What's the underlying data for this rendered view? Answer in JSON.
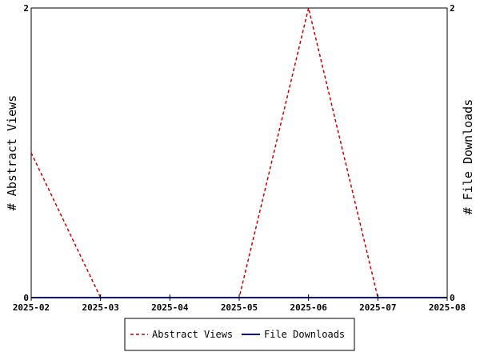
{
  "chart_data": {
    "type": "line",
    "categories": [
      "2025-02",
      "2025-03",
      "2025-04",
      "2025-05",
      "2025-06",
      "2025-07",
      "2025-08"
    ],
    "series": [
      {
        "name": "Abstract Views",
        "axis": "left",
        "color": "#cc0000",
        "dash": "dashed",
        "values": [
          1,
          0,
          0,
          0,
          2,
          0,
          0
        ]
      },
      {
        "name": "File Downloads",
        "axis": "right",
        "color": "#000099",
        "dash": "solid",
        "values": [
          0,
          0,
          0,
          0,
          0,
          0,
          0
        ]
      }
    ],
    "ylabel_left": "# Abstract Views",
    "ylabel_right": "# File Downloads",
    "ylim_left": [
      0,
      2
    ],
    "ylim_right": [
      0,
      2
    ],
    "y_ticks_left": [
      "0",
      "2"
    ],
    "y_ticks_right": [
      "0",
      "2"
    ],
    "grid": false,
    "legend_position": "bottom"
  }
}
